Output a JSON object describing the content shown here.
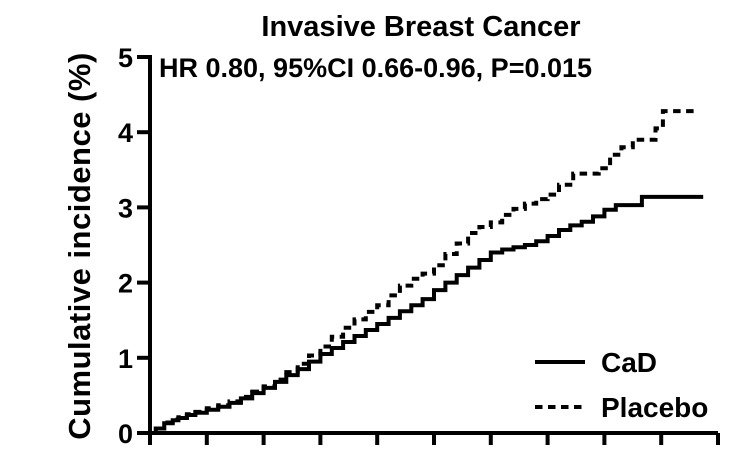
{
  "title": "Invasive Breast Cancer",
  "annotation": "HR 0.80, 95%CI 0.66-0.96, P=0.015",
  "colors": {
    "line": "#000000",
    "background": "#ffffff"
  },
  "y_axis": {
    "label": "Cumulative incidence (%)"
  },
  "x_axis": {
    "labels_visible": false
  },
  "chart_data": {
    "type": "line",
    "title": "Invasive Breast Cancer",
    "annotation": "HR 0.80, 95%CI 0.66-0.96, P=0.015",
    "xlabel": "",
    "ylabel": "Cumulative incidence (%)",
    "xlim": [
      0,
      10
    ],
    "ylim": [
      0,
      5
    ],
    "yticks": [
      0,
      1,
      2,
      3,
      4,
      5
    ],
    "ytick_labels": [
      "0",
      "1",
      "2",
      "3",
      "4",
      "5"
    ],
    "xticks": [
      0,
      1,
      2,
      3,
      4,
      5,
      6,
      7,
      8,
      9,
      10
    ],
    "xtick_labels": [],
    "grid": false,
    "step_interpolation": true,
    "legend_position": "lower right",
    "series": [
      {
        "name": "CaD",
        "line_style": "solid",
        "x": [
          0,
          0.1,
          0.25,
          0.4,
          0.5,
          0.65,
          0.8,
          1.0,
          1.2,
          1.4,
          1.6,
          1.8,
          2.0,
          2.2,
          2.4,
          2.6,
          2.8,
          3.0,
          3.2,
          3.4,
          3.6,
          3.8,
          4.0,
          4.2,
          4.4,
          4.6,
          4.8,
          5.0,
          5.2,
          5.4,
          5.6,
          5.8,
          6.0,
          6.2,
          6.4,
          6.6,
          6.8,
          7.0,
          7.2,
          7.4,
          7.6,
          7.8,
          8.0,
          8.2,
          8.66,
          9.74
        ],
        "y": [
          0,
          0.06,
          0.13,
          0.17,
          0.2,
          0.24,
          0.27,
          0.31,
          0.35,
          0.4,
          0.46,
          0.53,
          0.6,
          0.68,
          0.77,
          0.85,
          0.95,
          1.05,
          1.13,
          1.21,
          1.29,
          1.37,
          1.45,
          1.53,
          1.62,
          1.7,
          1.78,
          1.9,
          2.0,
          2.1,
          2.2,
          2.3,
          2.4,
          2.44,
          2.47,
          2.5,
          2.55,
          2.62,
          2.7,
          2.76,
          2.81,
          2.88,
          2.97,
          3.03,
          3.14,
          3.14
        ]
      },
      {
        "name": "Placebo",
        "line_style": "dashed",
        "x": [
          0,
          0.1,
          0.25,
          0.4,
          0.5,
          0.65,
          0.8,
          1.0,
          1.2,
          1.4,
          1.6,
          1.8,
          2.0,
          2.2,
          2.4,
          2.6,
          2.8,
          3.0,
          3.2,
          3.4,
          3.6,
          3.8,
          4.0,
          4.2,
          4.4,
          4.6,
          4.8,
          5.0,
          5.2,
          5.4,
          5.6,
          5.8,
          6.0,
          6.2,
          6.4,
          6.6,
          6.8,
          7.0,
          7.2,
          7.45,
          7.9,
          8.1,
          8.3,
          8.5,
          8.8,
          8.9,
          9.03,
          9.6
        ],
        "y": [
          0,
          0.06,
          0.14,
          0.18,
          0.21,
          0.25,
          0.28,
          0.33,
          0.37,
          0.42,
          0.48,
          0.55,
          0.62,
          0.71,
          0.81,
          0.92,
          1.03,
          1.15,
          1.28,
          1.4,
          1.51,
          1.61,
          1.7,
          1.83,
          1.96,
          2.05,
          2.12,
          2.23,
          2.38,
          2.52,
          2.66,
          2.74,
          2.8,
          2.9,
          2.98,
          3.05,
          3.11,
          3.17,
          3.3,
          3.45,
          3.52,
          3.7,
          3.8,
          3.9,
          3.9,
          4.05,
          4.28,
          4.28
        ]
      }
    ]
  }
}
